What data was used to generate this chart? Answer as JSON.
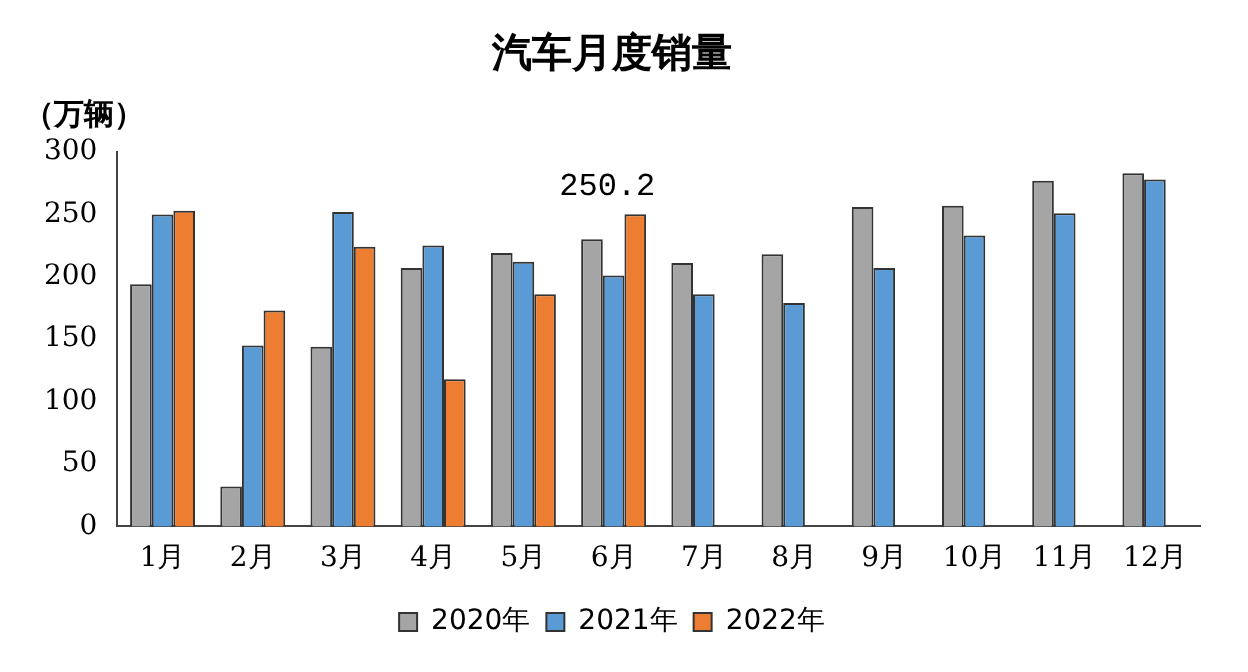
{
  "chart_data": {
    "type": "bar",
    "title": "汽车月度销量",
    "ylabel": "（万辆）",
    "categories": [
      "1月",
      "2月",
      "3月",
      "4月",
      "5月",
      "6月",
      "7月",
      "8月",
      "9月",
      "10月",
      "11月",
      "12月"
    ],
    "series": [
      {
        "name": "2020年",
        "color": "#a5a5a5",
        "values": [
          194,
          32,
          144,
          207,
          219,
          230,
          211,
          218,
          256,
          257,
          277,
          283
        ]
      },
      {
        "name": "2021年",
        "color": "#5b9bd5",
        "values": [
          250,
          145,
          252,
          225,
          212,
          201,
          186,
          179,
          207,
          233,
          251,
          278
        ]
      },
      {
        "name": "2022年",
        "color": "#ed7d31",
        "values": [
          253,
          173,
          224,
          118,
          186,
          250.2,
          null,
          null,
          null,
          null,
          null,
          null
        ],
        "value_labels": [
          null,
          null,
          null,
          null,
          null,
          "250.2",
          null,
          null,
          null,
          null,
          null,
          null
        ]
      }
    ],
    "ylim": [
      0,
      300
    ],
    "yticks": [
      0,
      50,
      100,
      150,
      200,
      250,
      300
    ],
    "grid": false,
    "legend": "bottom"
  }
}
